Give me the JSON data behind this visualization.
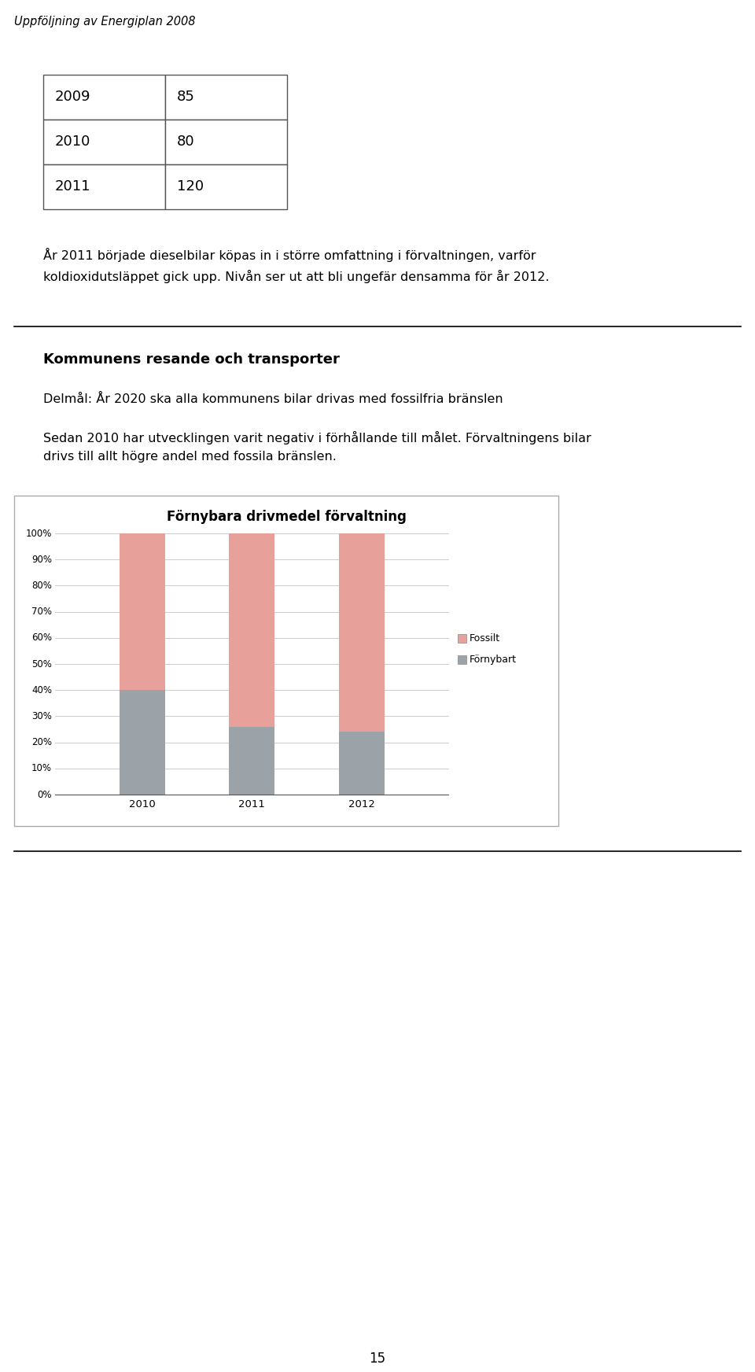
{
  "page_title": "Uppföljning av Energiplan 2008",
  "table_years": [
    "2009",
    "2010",
    "2011"
  ],
  "table_values": [
    "85",
    "80",
    "120"
  ],
  "para1": "År 2011 började dieselbilar köpas in i större omfattning i förvaltningen, varför\nkoldioxidutsläppet gick upp. Nivån ser ut att bli ungefär densamma för år 2012.",
  "section_title": "Kommunens resande och transporter",
  "delmål": "Delmål: År 2020 ska alla kommunens bilar drivas med fossilfria bränslen",
  "para2": "Sedan 2010 har utvecklingen varit negativ i förhållande till målet. Förvaltningens bilar\ndrivs till allt högre andel med fossila bränslen.",
  "chart_title": "Förnybara drivmedel förvaltning",
  "categories": [
    "2010",
    "2011",
    "2012"
  ],
  "fornybart": [
    0.4,
    0.26,
    0.24
  ],
  "fossilt": [
    0.6,
    0.74,
    0.76
  ],
  "color_fossilt": "#E8A09A",
  "color_fornybart": "#9BA3A8",
  "yticks": [
    0.0,
    0.1,
    0.2,
    0.3,
    0.4,
    0.5,
    0.6,
    0.7,
    0.8,
    0.9,
    1.0
  ],
  "ytick_labels": [
    "0%",
    "10%",
    "20%",
    "30%",
    "40%",
    "50%",
    "60%",
    "70%",
    "80%",
    "90%",
    "100%"
  ],
  "legend_fossilt": "Fossilt",
  "legend_fornybart": "Förnybart",
  "page_number": "15"
}
